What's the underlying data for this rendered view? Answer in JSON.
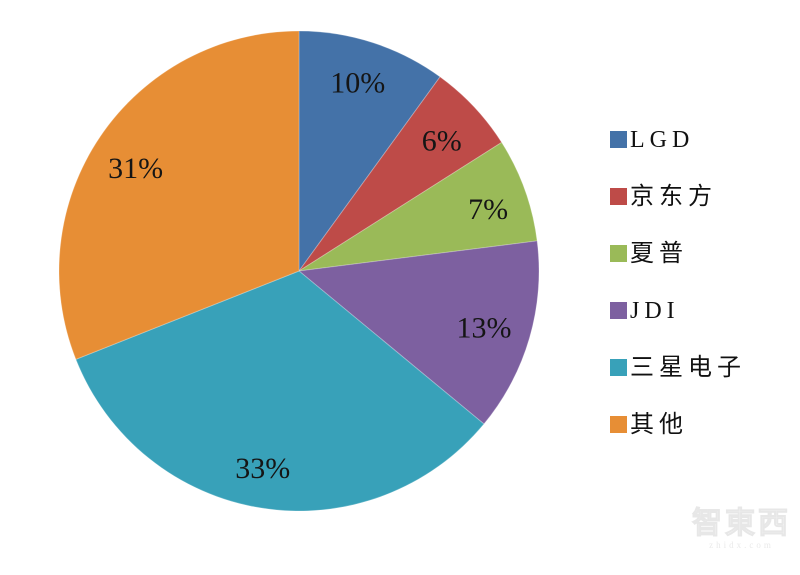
{
  "chart_data": {
    "type": "pie",
    "title": "",
    "start_angle_deg": 0,
    "direction": "clockwise",
    "series": [
      {
        "name": "LGD",
        "value": 10,
        "label": "10%",
        "color": "#4472A8"
      },
      {
        "name": "京东方",
        "value": 6,
        "label": "6%",
        "color": "#BE4B48"
      },
      {
        "name": "夏普",
        "value": 7,
        "label": "7%",
        "color": "#9ABA58"
      },
      {
        "name": "JDI",
        "value": 13,
        "label": "13%",
        "color": "#7D60A0"
      },
      {
        "name": "三星电子",
        "value": 33,
        "label": "33%",
        "color": "#38A1B9"
      },
      {
        "name": "其他",
        "value": 31,
        "label": "31%",
        "color": "#E78E35"
      }
    ],
    "legend_position": "right",
    "label_format": "percent"
  },
  "watermark": {
    "logo_text": "智東西",
    "url_text": "zhidx.com"
  }
}
